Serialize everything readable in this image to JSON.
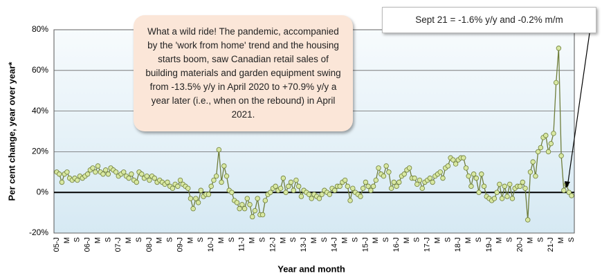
{
  "chart_data": {
    "type": "line",
    "annotation": "What a wild ride! The pandemic, accompanied by the 'work from home' trend and the housing starts boom, saw Canadian retail sales of building materials and garden equipment swing from -13.5% y/y in April 2020 to +70.9% y/y a year later (i.e., when  on the rebound) in April 2021.",
    "callout": "Sept 21 = -1.6% y/y and -0.2% m/m",
    "x_label": "Year and month",
    "y_label": "Per cent change, year over year*",
    "categories": [
      "05-J",
      null,
      null,
      null,
      "M",
      null,
      null,
      null,
      "S",
      null,
      null,
      null,
      "06-J",
      null,
      null,
      null,
      "M",
      null,
      null,
      null,
      "S",
      null,
      null,
      null,
      "07-J",
      null,
      null,
      null,
      "M",
      null,
      null,
      null,
      "S",
      null,
      null,
      null,
      "08-J",
      null,
      null,
      null,
      "M",
      null,
      null,
      null,
      "S",
      null,
      null,
      null,
      "09-J",
      null,
      null,
      null,
      "M",
      null,
      null,
      null,
      "S",
      null,
      null,
      null,
      "10-J",
      null,
      null,
      null,
      "M",
      null,
      null,
      null,
      "S",
      null,
      null,
      null,
      "11-J",
      null,
      null,
      null,
      "M",
      null,
      null,
      null,
      "S",
      null,
      null,
      null,
      "12-J",
      null,
      null,
      null,
      "M",
      null,
      null,
      null,
      "S",
      null,
      null,
      null,
      "13-J",
      null,
      null,
      null,
      "M",
      null,
      null,
      null,
      "S",
      null,
      null,
      null,
      "14-J",
      null,
      null,
      null,
      "M",
      null,
      null,
      null,
      "S",
      null,
      null,
      null,
      "15-J",
      null,
      null,
      null,
      "M",
      null,
      null,
      null,
      "S",
      null,
      null,
      null,
      "16-J",
      null,
      null,
      null,
      "M",
      null,
      null,
      null,
      "S",
      null,
      null,
      null,
      "17-J",
      null,
      null,
      null,
      "M",
      null,
      null,
      null,
      "S",
      null,
      null,
      null,
      "18-J",
      null,
      null,
      null,
      "M",
      null,
      null,
      null,
      "S",
      null,
      null,
      null,
      "19-J",
      null,
      null,
      null,
      "M",
      null,
      null,
      null,
      "S",
      null,
      null,
      null,
      "20-J",
      null,
      null,
      null,
      "M",
      null,
      null,
      null,
      "S",
      null,
      null,
      null,
      "21-J",
      null,
      null,
      null,
      "M",
      null,
      null,
      null,
      "S"
    ],
    "values": [
      10,
      9,
      5,
      9,
      10,
      7,
      6,
      7,
      6,
      8,
      7,
      8,
      9,
      11,
      12,
      10,
      13,
      10,
      9,
      11,
      9,
      12,
      11,
      10,
      8,
      9,
      10,
      8,
      7,
      9,
      6,
      5,
      10,
      9,
      7,
      8,
      6,
      8,
      7,
      5,
      6,
      5,
      4,
      5,
      3,
      2,
      4,
      3,
      6,
      4,
      3,
      2,
      -3,
      -8,
      -3,
      -5,
      1,
      -2,
      -1,
      -1,
      3,
      6,
      8,
      21,
      5,
      13,
      8,
      1,
      0,
      -4,
      -5,
      -8,
      -6,
      -8,
      -3,
      -6,
      -12,
      -9,
      -3,
      -11,
      -11,
      -4,
      -1,
      0,
      2,
      3,
      1,
      2,
      7,
      0,
      3,
      5,
      1,
      6,
      3,
      -2,
      1,
      0,
      -1,
      -3,
      -1,
      -2,
      -3,
      -1,
      1,
      0,
      -1,
      2,
      1,
      3,
      3,
      5,
      6,
      3,
      -4,
      2,
      0,
      -1,
      -2,
      2,
      5,
      3,
      1,
      3,
      6,
      12,
      9,
      8,
      13,
      10,
      2,
      5,
      3,
      5,
      8,
      9,
      11,
      12,
      7,
      7,
      4,
      6,
      2,
      5,
      6,
      7,
      5,
      8,
      9,
      10,
      7,
      12,
      13,
      17,
      16,
      14,
      16,
      17,
      17,
      12,
      8,
      3,
      9,
      7,
      0,
      9,
      3,
      -2,
      -3,
      -4,
      -3,
      0,
      4,
      -3,
      3,
      -2,
      4,
      -3,
      2,
      3,
      3,
      5,
      2,
      -13.5,
      10,
      15,
      8,
      20,
      22,
      27,
      28,
      20,
      24,
      29,
      54,
      70.9,
      18,
      1,
      4,
      0,
      -1.6
    ],
    "color": "#6e7d3a",
    "marker_color": "#d8e8a2",
    "ylim": [
      -20,
      80
    ],
    "yticks": [
      {
        "value": -20,
        "label": "-20%"
      },
      {
        "value": 0,
        "label": "0%"
      },
      {
        "value": 20,
        "label": "20%"
      },
      {
        "value": 40,
        "label": "40%"
      },
      {
        "value": 60,
        "label": "60%"
      },
      {
        "value": 80,
        "label": "80%"
      }
    ],
    "grid": true
  }
}
